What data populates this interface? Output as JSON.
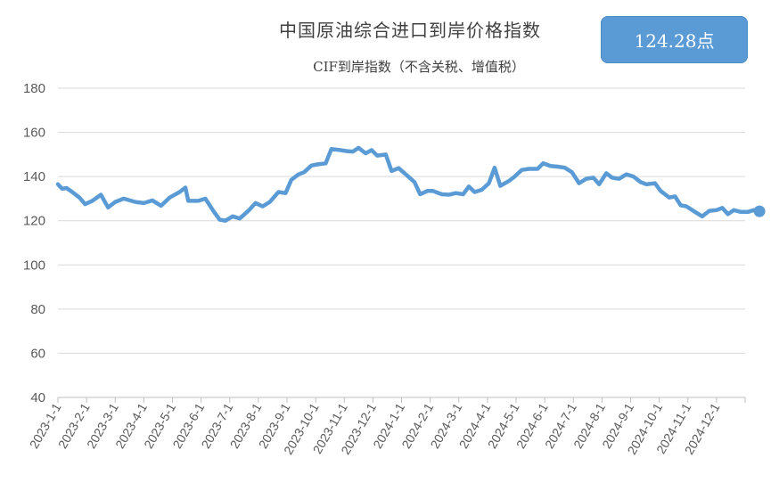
{
  "title": "中国原油综合进口到岸价格指数",
  "subtitle": "CIF到岸指数（不含关税、增值税）",
  "badge": "124.28点",
  "colors": {
    "line": "#5b9bd5",
    "grid": "#d9d9d9",
    "axis": "#bfbfbf",
    "badge": "#5b9bd5"
  },
  "chart_data": {
    "type": "line",
    "title": "中国原油综合进口到岸价格指数",
    "subtitle": "CIF到岸指数（不含关税、增值税）",
    "ylim": [
      40,
      180
    ],
    "yticks": [
      40,
      60,
      80,
      100,
      120,
      140,
      160,
      180
    ],
    "grid": true,
    "x_tick_labels": [
      "2023-1-1",
      "2023-2-1",
      "2023-3-1",
      "2023-4-1",
      "2023-5-1",
      "2023-6-1",
      "2023-7-1",
      "2023-8-1",
      "2023-9-1",
      "2023-10-1",
      "2023-11-1",
      "2023-12-1",
      "2024-1-1",
      "2024-2-1",
      "2024-3-1",
      "2024-4-1",
      "2024-5-1",
      "2024-6-1",
      "2024-7-1",
      "2024-8-1",
      "2024-9-1",
      "2024-10-1",
      "2024-11-1",
      "2024-12-1"
    ],
    "last_value": 124.28,
    "series": [
      {
        "values": [
          [
            0.0,
            136.5
          ],
          [
            0.15,
            134.5
          ],
          [
            0.3,
            134.8
          ],
          [
            0.5,
            133.0
          ],
          [
            0.75,
            130.5
          ],
          [
            0.95,
            127.5
          ],
          [
            1.2,
            129.0
          ],
          [
            1.5,
            131.8
          ],
          [
            1.75,
            126.0
          ],
          [
            2.0,
            128.5
          ],
          [
            2.3,
            130.0
          ],
          [
            2.7,
            128.5
          ],
          [
            3.0,
            128.0
          ],
          [
            3.3,
            129.2
          ],
          [
            3.6,
            126.8
          ],
          [
            3.9,
            130.5
          ],
          [
            4.25,
            133.0
          ],
          [
            4.45,
            135.0
          ],
          [
            4.55,
            129.0
          ],
          [
            4.9,
            129.0
          ],
          [
            5.15,
            130.0
          ],
          [
            5.45,
            124.0
          ],
          [
            5.65,
            120.5
          ],
          [
            5.85,
            120.0
          ],
          [
            6.1,
            122.0
          ],
          [
            6.35,
            121.0
          ],
          [
            6.65,
            124.5
          ],
          [
            6.9,
            128.0
          ],
          [
            7.15,
            126.5
          ],
          [
            7.4,
            128.5
          ],
          [
            7.7,
            133.0
          ],
          [
            7.95,
            132.5
          ],
          [
            8.15,
            138.5
          ],
          [
            8.4,
            141.0
          ],
          [
            8.6,
            142.0
          ],
          [
            8.85,
            145.0
          ],
          [
            9.05,
            145.5
          ],
          [
            9.35,
            146.0
          ],
          [
            9.55,
            152.5
          ],
          [
            9.85,
            152.0
          ],
          [
            10.1,
            151.5
          ],
          [
            10.3,
            151.3
          ],
          [
            10.5,
            153.0
          ],
          [
            10.75,
            150.5
          ],
          [
            10.95,
            152.0
          ],
          [
            11.15,
            149.5
          ],
          [
            11.45,
            150.0
          ],
          [
            11.65,
            142.5
          ],
          [
            11.9,
            143.8
          ],
          [
            12.15,
            141.0
          ],
          [
            12.45,
            137.5
          ],
          [
            12.65,
            132.0
          ],
          [
            12.9,
            133.5
          ],
          [
            13.1,
            133.5
          ],
          [
            13.4,
            132.0
          ],
          [
            13.65,
            131.8
          ],
          [
            13.9,
            132.5
          ],
          [
            14.15,
            132.0
          ],
          [
            14.35,
            135.5
          ],
          [
            14.55,
            133.0
          ],
          [
            14.8,
            134.0
          ],
          [
            15.05,
            137.0
          ],
          [
            15.25,
            144.0
          ],
          [
            15.45,
            135.8
          ],
          [
            15.75,
            138.0
          ],
          [
            15.95,
            140.0
          ],
          [
            16.2,
            143.0
          ],
          [
            16.45,
            143.5
          ],
          [
            16.75,
            143.5
          ],
          [
            16.95,
            146.0
          ],
          [
            17.2,
            144.8
          ],
          [
            17.45,
            144.5
          ],
          [
            17.7,
            144.0
          ],
          [
            17.95,
            142.0
          ],
          [
            18.2,
            137.0
          ],
          [
            18.45,
            139.0
          ],
          [
            18.7,
            139.5
          ],
          [
            18.9,
            136.5
          ],
          [
            19.15,
            141.5
          ],
          [
            19.35,
            139.5
          ],
          [
            19.6,
            139.0
          ],
          [
            19.85,
            141.0
          ],
          [
            20.1,
            140.0
          ],
          [
            20.35,
            137.5
          ],
          [
            20.55,
            136.5
          ],
          [
            20.85,
            137.0
          ],
          [
            21.05,
            133.5
          ],
          [
            21.35,
            130.5
          ],
          [
            21.55,
            131.0
          ],
          [
            21.75,
            127.0
          ],
          [
            21.95,
            126.5
          ],
          [
            22.25,
            124.0
          ],
          [
            22.5,
            122.0
          ],
          [
            22.75,
            124.5
          ],
          [
            23.0,
            124.8
          ],
          [
            23.2,
            125.8
          ],
          [
            23.4,
            123.0
          ],
          [
            23.6,
            124.8
          ],
          [
            23.85,
            124.0
          ],
          [
            24.1,
            124.0
          ],
          [
            24.3,
            124.8
          ],
          [
            24.5,
            124.28
          ]
        ]
      }
    ]
  }
}
